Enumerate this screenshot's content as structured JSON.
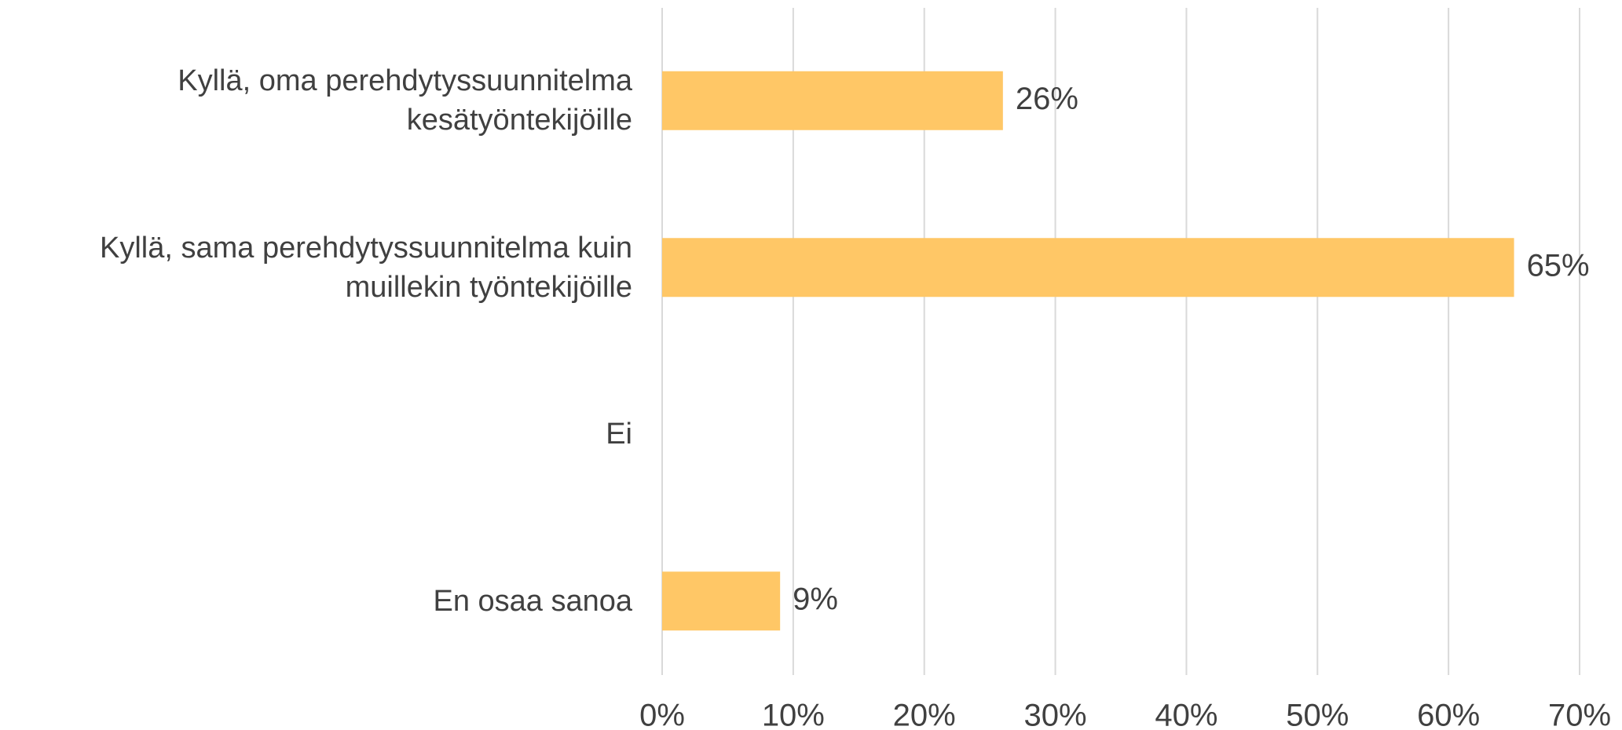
{
  "chart_data": {
    "type": "bar",
    "orientation": "horizontal",
    "categories": [
      "Kyllä, oma perehdytyssuunnitelma kesätyöntekijöille",
      "Kyllä, sama perehdytyssuunnitelma kuin muillekin työntekijöille",
      "Ei",
      "En osaa sanoa"
    ],
    "values": [
      26,
      65,
      0,
      9
    ],
    "value_labels": [
      "26%",
      "65%",
      null,
      "9%"
    ],
    "color": "#ffc766",
    "xlim": [
      0,
      70
    ],
    "xticks": [
      {
        "value": 0,
        "label": "0%"
      },
      {
        "value": 10,
        "label": "10%"
      },
      {
        "value": 20,
        "label": "20%"
      },
      {
        "value": 30,
        "label": "30%"
      },
      {
        "value": 40,
        "label": "40%"
      },
      {
        "value": 50,
        "label": "50%"
      },
      {
        "value": 60,
        "label": "60%"
      },
      {
        "value": 70,
        "label": "70%"
      }
    ],
    "grid": true
  }
}
